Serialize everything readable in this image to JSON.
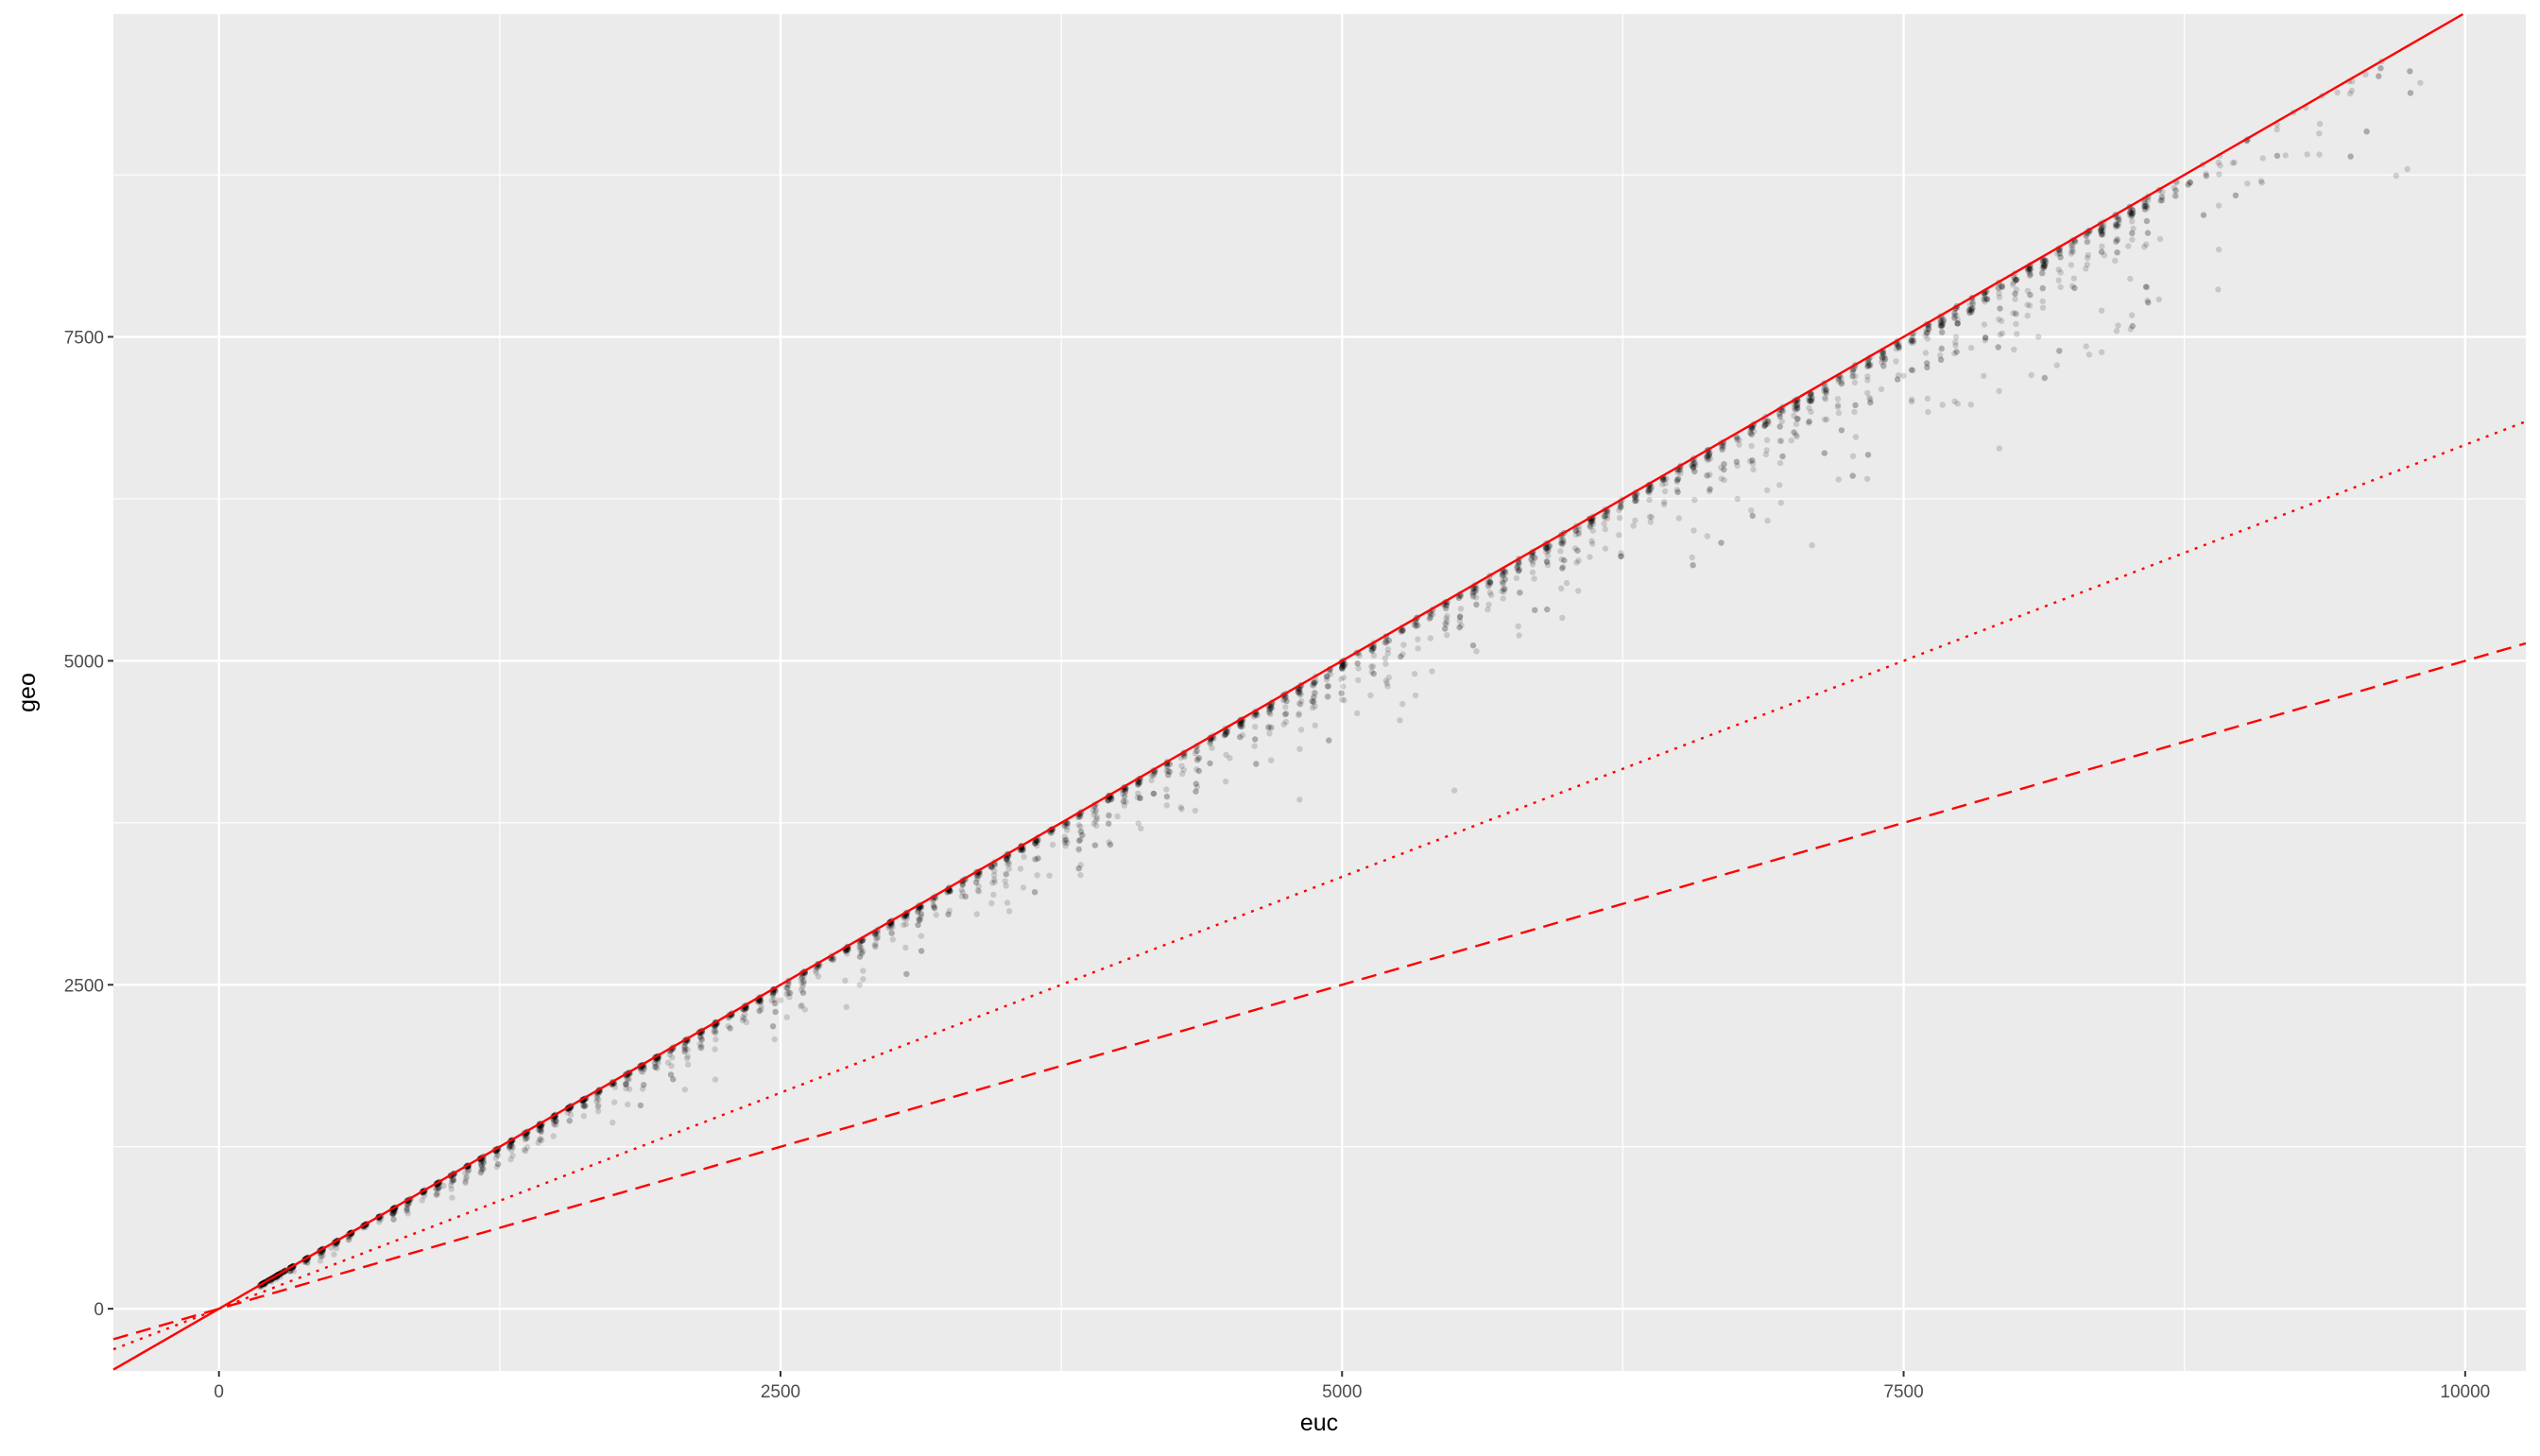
{
  "chart_data": {
    "type": "scatter",
    "title": "",
    "xlabel": "euc",
    "ylabel": "geo",
    "xlim": [
      -470,
      10270
    ],
    "ylim": [
      -480,
      9990
    ],
    "x_ticks": [
      0,
      2500,
      5000,
      7500,
      10000
    ],
    "x_tick_labels": [
      "0",
      "2500",
      "5000",
      "7500",
      "10000"
    ],
    "y_ticks": [
      0,
      2500,
      5000,
      7500
    ],
    "y_tick_labels": [
      "0",
      "2500",
      "5000",
      "7500"
    ],
    "x_minor_ticks": [
      1250,
      3750,
      6250,
      8750
    ],
    "y_minor_ticks": [
      1250,
      3750,
      6250,
      8750
    ],
    "grid": true,
    "legend": "none",
    "colors": {
      "panel_background": "#ebebeb",
      "grid": "#ffffff",
      "points": "#000000",
      "reference_lines": "#ff0000"
    },
    "point_alpha": 0.15,
    "reference_lines": [
      {
        "slope": 1.0,
        "intercept": 0,
        "style": "solid"
      },
      {
        "slope": 0.6667,
        "intercept": 0,
        "style": "dotted"
      },
      {
        "slope": 0.5,
        "intercept": 0,
        "style": "dashed"
      }
    ],
    "scatter_points": {
      "x_range": [
        0,
        9850
      ],
      "y_upper_bound": "y = x",
      "point_count_estimate": 3000,
      "sample": [
        {
          "x": 230,
          "y": 215
        },
        {
          "x": 325,
          "y": 300
        },
        {
          "x": 500,
          "y": 470
        },
        {
          "x": 1000,
          "y": 950
        },
        {
          "x": 1500,
          "y": 1420
        },
        {
          "x": 2000,
          "y": 1900
        },
        {
          "x": 2500,
          "y": 2380
        },
        {
          "x": 3000,
          "y": 2850
        },
        {
          "x": 3500,
          "y": 3300
        },
        {
          "x": 4000,
          "y": 3800
        },
        {
          "x": 4500,
          "y": 4250
        },
        {
          "x": 5000,
          "y": 4700
        },
        {
          "x": 5500,
          "y": 4000
        },
        {
          "x": 6000,
          "y": 5600
        },
        {
          "x": 6500,
          "y": 6100
        },
        {
          "x": 7000,
          "y": 6700
        },
        {
          "x": 7500,
          "y": 7200
        },
        {
          "x": 8000,
          "y": 7600
        },
        {
          "x": 8100,
          "y": 7500
        },
        {
          "x": 8500,
          "y": 8200
        },
        {
          "x": 9200,
          "y": 8900
        },
        {
          "x": 9350,
          "y": 9070
        },
        {
          "x": 9800,
          "y": 9460
        }
      ]
    }
  }
}
